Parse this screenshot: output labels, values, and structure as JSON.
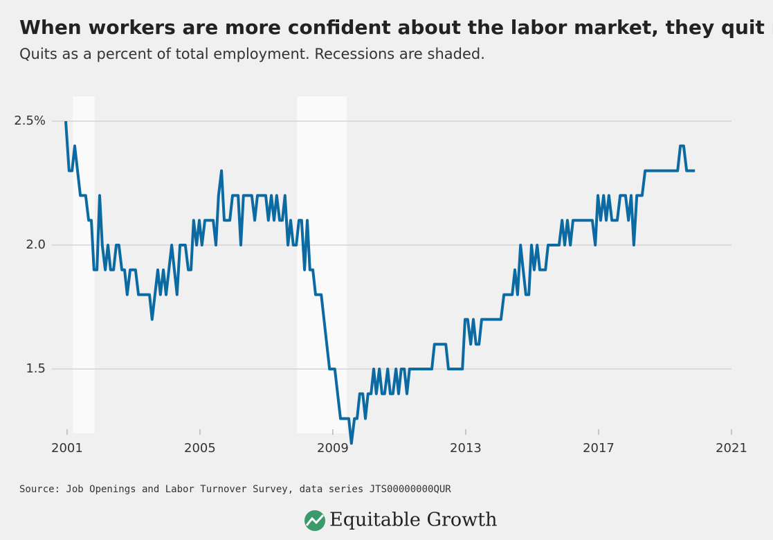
{
  "chart_data": {
    "type": "line",
    "title": "When workers are more confident about the labor market, they quit more",
    "subtitle": "Quits as a percent of total employment. Recessions are shaded.",
    "source": "Source: Job Openings and Labor Turnover Survey, data series JTS00000000QUR",
    "brand": "Equitable Growth",
    "color": "#0b6aa2",
    "recession_color": "#fafafa",
    "recessions": [
      [
        2001.17,
        2001.83
      ],
      [
        2007.92,
        2009.42
      ]
    ],
    "x": [
      2000.96,
      2001.06,
      2001.15,
      2001.23,
      2001.4,
      2001.56,
      2001.65,
      2001.73,
      2001.81,
      2001.9,
      2001.98,
      2002.06,
      2002.15,
      2002.23,
      2002.31,
      2002.4,
      2002.48,
      2002.56,
      2002.65,
      2002.73,
      2002.81,
      2002.9,
      2003.06,
      2003.15,
      2003.48,
      2003.56,
      2003.73,
      2003.81,
      2003.9,
      2003.98,
      2004.15,
      2004.31,
      2004.4,
      2004.56,
      2004.65,
      2004.73,
      2004.81,
      2004.9,
      2004.98,
      2005.06,
      2005.15,
      2005.4,
      2005.48,
      2005.56,
      2005.65,
      2005.73,
      2005.9,
      2005.98,
      2006.15,
      2006.23,
      2006.31,
      2006.56,
      2006.65,
      2006.73,
      2006.98,
      2007.06,
      2007.15,
      2007.23,
      2007.31,
      2007.4,
      2007.48,
      2007.56,
      2007.65,
      2007.73,
      2007.81,
      2007.9,
      2007.98,
      2008.06,
      2008.15,
      2008.23,
      2008.31,
      2008.4,
      2008.48,
      2008.65,
      2008.9,
      2009.06,
      2009.23,
      2009.48,
      2009.56,
      2009.65,
      2009.73,
      2009.81,
      2009.9,
      2009.98,
      2010.06,
      2010.15,
      2010.23,
      2010.31,
      2010.4,
      2010.48,
      2010.56,
      2010.65,
      2010.73,
      2010.81,
      2010.9,
      2010.98,
      2011.06,
      2011.15,
      2011.23,
      2011.31,
      2011.98,
      2012.06,
      2012.4,
      2012.48,
      2012.9,
      2012.98,
      2013.06,
      2013.15,
      2013.23,
      2013.31,
      2013.4,
      2013.48,
      2014.06,
      2014.15,
      2014.4,
      2014.48,
      2014.56,
      2014.65,
      2014.73,
      2014.81,
      2014.9,
      2014.98,
      2015.06,
      2015.15,
      2015.23,
      2015.4,
      2015.48,
      2015.81,
      2015.9,
      2015.98,
      2016.06,
      2016.15,
      2016.23,
      2016.73,
      2016.81,
      2016.9,
      2016.98,
      2017.06,
      2017.15,
      2017.23,
      2017.31,
      2017.4,
      2017.56,
      2017.65,
      2017.81,
      2017.9,
      2017.98,
      2018.06,
      2018.15,
      2018.31,
      2018.4,
      2019.38,
      2019.46,
      2019.56,
      2019.65,
      2019.9
    ],
    "values": [
      2.5,
      2.3,
      2.3,
      2.4,
      2.2,
      2.2,
      2.1,
      2.1,
      1.9,
      1.9,
      2.2,
      2.0,
      1.9,
      2.0,
      1.9,
      1.9,
      2.0,
      2.0,
      1.9,
      1.9,
      1.8,
      1.9,
      1.9,
      1.8,
      1.8,
      1.7,
      1.9,
      1.8,
      1.9,
      1.8,
      2.0,
      1.8,
      2.0,
      2.0,
      1.9,
      1.9,
      2.1,
      2.0,
      2.1,
      2.0,
      2.1,
      2.1,
      2.0,
      2.2,
      2.3,
      2.1,
      2.1,
      2.2,
      2.2,
      2.0,
      2.2,
      2.2,
      2.1,
      2.2,
      2.2,
      2.1,
      2.2,
      2.1,
      2.2,
      2.1,
      2.1,
      2.2,
      2.0,
      2.1,
      2.0,
      2.0,
      2.1,
      2.1,
      1.9,
      2.1,
      1.9,
      1.9,
      1.8,
      1.8,
      1.5,
      1.5,
      1.3,
      1.3,
      1.2,
      1.3,
      1.3,
      1.4,
      1.4,
      1.3,
      1.4,
      1.4,
      1.5,
      1.4,
      1.5,
      1.4,
      1.4,
      1.5,
      1.4,
      1.4,
      1.5,
      1.4,
      1.5,
      1.5,
      1.4,
      1.5,
      1.5,
      1.6,
      1.6,
      1.5,
      1.5,
      1.7,
      1.7,
      1.6,
      1.7,
      1.6,
      1.6,
      1.7,
      1.7,
      1.8,
      1.8,
      1.9,
      1.8,
      2.0,
      1.9,
      1.8,
      1.8,
      2.0,
      1.9,
      2.0,
      1.9,
      1.9,
      2.0,
      2.0,
      2.1,
      2.0,
      2.1,
      2.0,
      2.1,
      2.1,
      2.1,
      2.0,
      2.2,
      2.1,
      2.2,
      2.1,
      2.2,
      2.1,
      2.1,
      2.2,
      2.2,
      2.1,
      2.2,
      2.0,
      2.2,
      2.2,
      2.3,
      2.3,
      2.4,
      2.4,
      2.3,
      2.3
    ],
    "xlim": [
      2000.96,
      2021
    ],
    "xticks": [
      2001,
      2005,
      2009,
      2013,
      2017,
      2021
    ],
    "ylim": [
      1.2,
      2.6
    ],
    "yticks": [
      {
        "value": 2.5,
        "label": "2.5%"
      },
      {
        "value": 2,
        "label": "2.0"
      },
      {
        "value": 1.5,
        "label": "1.5"
      }
    ],
    "grid": true
  }
}
